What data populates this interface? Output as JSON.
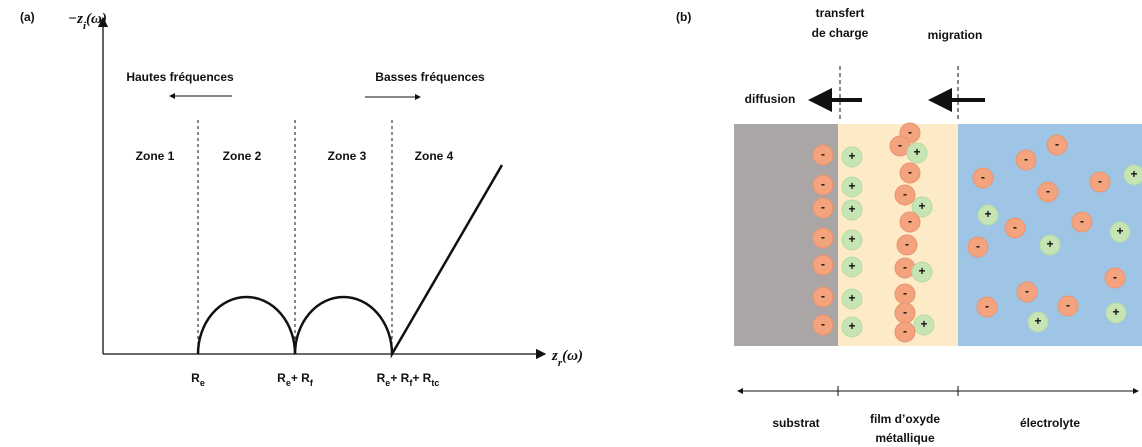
{
  "panel_a": {
    "tag": "(a)",
    "y_axis_label": [
      "−z",
      "i",
      "(ω)"
    ],
    "x_axis_label": [
      "z",
      "r",
      "(ω)"
    ],
    "high_freq": "Hautes fréquences",
    "low_freq": "Basses fréquences",
    "zones": [
      "Zone 1",
      "Zone 2",
      "Zone 3",
      "Zone 4"
    ],
    "x_labels": [
      [
        "R",
        "e"
      ],
      [
        "R",
        "e",
        "+ R",
        "f"
      ],
      [
        "R",
        "e",
        "+ R",
        "f",
        "+ R",
        "tc"
      ]
    ]
  },
  "panel_b": {
    "tag": "(b)",
    "charge_transfer": [
      "transfert",
      "de charge"
    ],
    "migration": "migration",
    "diffusion": "diffusion",
    "layers": [
      [
        "substrat"
      ],
      [
        "film d’oxyde",
        "métallique"
      ],
      [
        "électrolyte"
      ]
    ],
    "ion_signs": {
      "negative": "-",
      "positive": "+"
    }
  }
}
